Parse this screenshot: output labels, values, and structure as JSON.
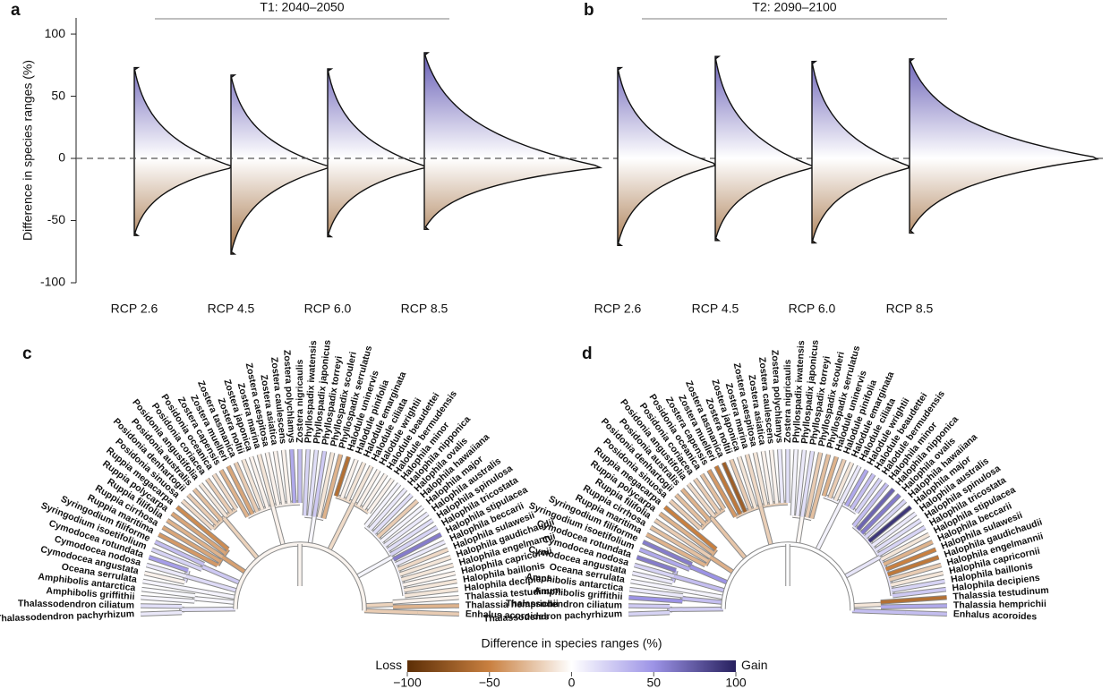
{
  "chart_data": [
    {
      "type": "violin",
      "panel_label": "a",
      "title": "T1: 2040–2050",
      "y_label": "Difference in species ranges (%)",
      "categories": [
        "RCP 2.6",
        "RCP 4.5",
        "RCP 6.0",
        "RCP 8.5"
      ],
      "max": [
        73,
        67,
        72,
        85
      ],
      "mode": [
        -7,
        -7,
        -7,
        -7
      ],
      "min": [
        -62,
        -77,
        -63,
        -57
      ],
      "ylim": [
        -100,
        113
      ],
      "yticks": [
        -100,
        -50,
        0,
        50,
        100
      ]
    },
    {
      "type": "violin",
      "panel_label": "b",
      "title": "T2: 2090–2100",
      "categories": [
        "RCP 2.6",
        "RCP 4.5",
        "RCP 6.0",
        "RCP 8.5"
      ],
      "max": [
        73,
        82,
        78,
        80
      ],
      "mode": [
        -5,
        -7,
        -7,
        0
      ],
      "min": [
        -70,
        -66,
        -68,
        -60
      ],
      "ylim": [
        -100,
        113
      ]
    }
  ],
  "trees": [
    {
      "panel_label": "c",
      "species": [
        "Thalassodendron pachyrhizum",
        "Thalassodendron ciliatum",
        "Amphibolis griffithii",
        "Amphibolis antarctica",
        "Oceana serrulata",
        "Cymodocea angustata",
        "Cymodocea nodosa",
        "Cymodocea rotundata",
        "Syringodium isoetifolium",
        "Syringodium filiforme",
        "Ruppia maritima",
        "Ruppia cirrhosa",
        "Ruppia filifolia",
        "Ruppia polycarpa",
        "Ruppia megacarpa",
        "Posidonia sinuosa",
        "Posidonia denhartogii",
        "Posidonia australis",
        "Posidonia angustifolia",
        "Posidonia coriacea",
        "Posidonia oceanica",
        "Zostera capensis",
        "Zostera muelleri",
        "Zostera tasmanica",
        "Zostera noltii",
        "Zostera japonica",
        "Zostera marina",
        "Zostera caespitosa",
        "Zostera asiatica",
        "Zostera caulescens",
        "Zostera polychlamys",
        "Zostera nigricaulis",
        "Phyllospadix iwatensis",
        "Phyllospadix japonicus",
        "Phyllospadix torreyi",
        "Phyllospadix scouleri",
        "Phyllospadix serrulatus",
        "Halodule uninervis",
        "Halodule pinifolia",
        "Halodule emarginata",
        "Halodule ciliata",
        "Halodule wrightii",
        "Halodule beaudettei",
        "Halodule bermudensis",
        "Halophila minor",
        "Halophila nipponica",
        "Halophila ovalis",
        "Halophila hawaiiana",
        "Halophila major",
        "Halophila australis",
        "Halophila spinulosa",
        "Halophila tricostata",
        "Halophila stipulacea",
        "Halophila beccarii",
        "Halophila sulawesii",
        "Halophila gaudichaudii",
        "Halophila engelmannii",
        "Halophila capricornii",
        "Halophila baillonis",
        "Halophila decipiens",
        "Thalassia testudinum",
        "Thalassia hemprichii",
        "Enhalus acoroides"
      ],
      "values": [
        10,
        15,
        5,
        3,
        5,
        -5,
        10,
        45,
        20,
        30,
        -40,
        -35,
        -30,
        -35,
        -45,
        -15,
        -20,
        -25,
        -10,
        -20,
        -15,
        -30,
        -35,
        -20,
        -10,
        -5,
        -10,
        -5,
        -5,
        -5,
        40,
        30,
        20,
        15,
        25,
        -10,
        -30,
        -60,
        -5,
        -10,
        -10,
        -5,
        -5,
        -5,
        5,
        10,
        15,
        -20,
        5,
        10,
        15,
        20,
        60,
        10,
        -15,
        -10,
        -10,
        -5,
        -10,
        -10,
        -5,
        -30,
        -20
      ]
    },
    {
      "panel_label": "d",
      "species": [
        "Thalassodendron pachyrhizum",
        "Thalassodendron ciliatum",
        "Amphibolis griffithii",
        "Amphibolis antarctica",
        "Oceana serrulata",
        "Cymodocea angustata",
        "Cymodocea nodosa",
        "Cymodocea rotundata",
        "Syringodium isoetifolium",
        "Syringodium filiforme",
        "Ruppia maritima",
        "Ruppia cirrhosa",
        "Ruppia filifolia",
        "Ruppia polycarpa",
        "Ruppia megacarpa",
        "Posidonia sinuosa",
        "Posidonia denhartogii",
        "Posidonia australis",
        "Posidonia angustifolia",
        "Posidonia coriacea",
        "Posidonia oceanica",
        "Zostera capensis",
        "Zostera muelleri",
        "Zostera tasmanica",
        "Zostera noltii",
        "Zostera japonica",
        "Zostera marina",
        "Zostera caespitosa",
        "Zostera asiatica",
        "Zostera caulescens",
        "Zostera polychlamys",
        "Zostera nigricaulis",
        "Phyllospadix iwatensis",
        "Phyllospadix japonicus",
        "Phyllospadix torreyi",
        "Phyllospadix scouleri",
        "Phyllospadix serrulatus",
        "Halodule uninervis",
        "Halodule pinifolia",
        "Halodule emarginata",
        "Halodule ciliata",
        "Halodule wrightii",
        "Halodule beaudettei",
        "Halodule bermudensis",
        "Halophila minor",
        "Halophila nipponica",
        "Halophila ovalis",
        "Halophila hawaiiana",
        "Halophila major",
        "Halophila australis",
        "Halophila spinulosa",
        "Halophila tricostata",
        "Halophila stipulacea",
        "Halophila beccarii",
        "Halophila sulawesii",
        "Halophila gaudichaudii",
        "Halophila engelmannii",
        "Halophila capricornii",
        "Halophila baillonis",
        "Halophila decipiens",
        "Thalassia testudinum",
        "Thalassia hemprichii",
        "Enhalus acoroides"
      ],
      "values": [
        20,
        25,
        50,
        10,
        5,
        10,
        20,
        60,
        40,
        60,
        -30,
        -25,
        -20,
        -30,
        -50,
        -20,
        -25,
        -30,
        -15,
        -20,
        -25,
        -40,
        -55,
        -70,
        -20,
        -10,
        -15,
        -10,
        -5,
        -5,
        10,
        15,
        5,
        10,
        15,
        -20,
        -25,
        -30,
        -20,
        -10,
        10,
        40,
        30,
        20,
        30,
        70,
        60,
        20,
        90,
        10,
        15,
        20,
        -10,
        -30,
        -50,
        -55,
        -20,
        -10,
        20,
        25,
        -60,
        40,
        30
      ]
    }
  ],
  "colorbar": {
    "title": "Difference in species ranges (%)",
    "low_label": "Loss",
    "high_label": "Gain",
    "lim": [
      -100,
      100
    ],
    "ticks": [
      {
        "value": -100,
        "label": "−100"
      },
      {
        "value": -50,
        "label": "−50"
      },
      0,
      50,
      100
    ]
  }
}
